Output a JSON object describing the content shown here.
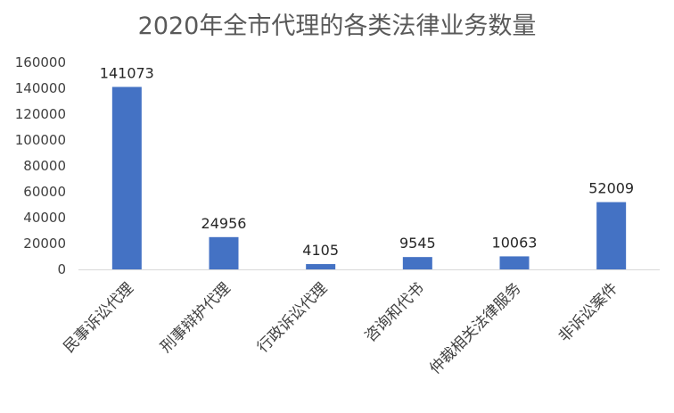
{
  "chart_data": {
    "type": "bar",
    "title": "2020年全市代理的各类法律业务数量",
    "xlabel": "",
    "ylabel": "",
    "categories": [
      "民事诉讼代理",
      "刑事辩护代理",
      "行政诉讼代理",
      "咨询和代书",
      "仲裁相关法律服务",
      "非诉讼案件"
    ],
    "values": [
      141073,
      24956,
      4105,
      9545,
      10063,
      52009
    ],
    "data_labels": [
      "141073",
      "24956",
      "4105",
      "9545",
      "10063",
      "52009"
    ],
    "ylim": [
      0,
      160000
    ],
    "yticks": [
      0,
      20000,
      40000,
      60000,
      80000,
      100000,
      120000,
      140000,
      160000
    ],
    "ytick_labels": [
      "0",
      "20000",
      "40000",
      "60000",
      "80000",
      "100000",
      "120000",
      "140000",
      "160000"
    ],
    "grid": false,
    "legend": "none",
    "bar_color": "#4472C4",
    "axis_color": "#D9D9D9"
  }
}
